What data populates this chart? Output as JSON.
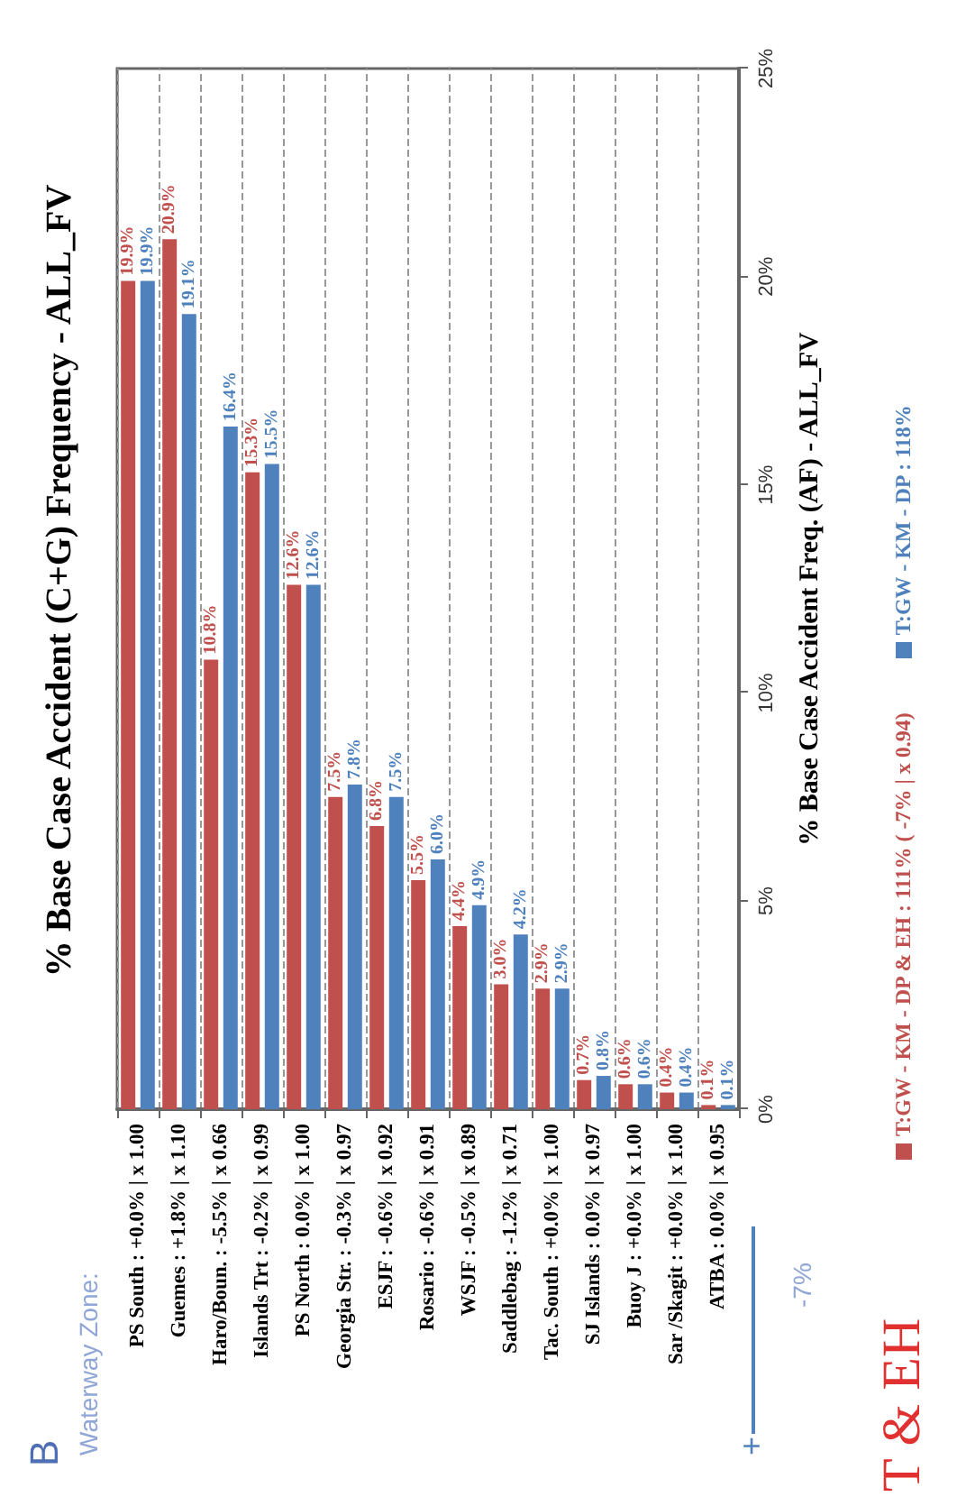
{
  "chart_data": {
    "type": "bar",
    "title": "% Base Case Accident (C+G) Frequency - ALL_FV",
    "ylabel": "% Base Case Accident Freq. (AF) - ALL_FV",
    "categories": [
      "PS South : +0.0% | x 1.00",
      "Guemes : +1.8% | x 1.10",
      "Haro/Boun. : -5.5% | x 0.66",
      "Islands Trt : -0.2% | x 0.99",
      "PS North : 0.0% | x 1.00",
      "Georgia Str. : -0.3% | x 0.97",
      "ESJF : -0.6% | x 0.92",
      "Rosario : -0.6% | x 0.91",
      "WSJF : -0.5% | x 0.89",
      "Saddlebag : -1.2% | x 0.71",
      "Tac. South : +0.0% | x 1.00",
      "SJ Islands : 0.0% | x 0.97",
      "Buoy J : +0.0% | x 1.00",
      "Sar /Skagit : +0.0% | x 1.00",
      "ATBA : 0.0% | x 0.95"
    ],
    "series": [
      {
        "name": "T:GW - KM - DP & EH : 111% ( -7% | x 0.94)",
        "color": "#c0504d",
        "values": [
          19.9,
          20.9,
          10.8,
          15.3,
          12.6,
          7.5,
          6.8,
          5.5,
          4.4,
          3.0,
          2.9,
          0.7,
          0.6,
          0.4,
          0.1
        ],
        "value_labels": [
          "19.9%",
          "20.9%",
          "10.8%",
          "15.3%",
          "12.6%",
          "7.5%",
          "6.8%",
          "5.5%",
          "4.4%",
          "3.0%",
          "2.9%",
          "0.7%",
          "0.6%",
          "0.4%",
          "0.1%"
        ]
      },
      {
        "name": "T:GW - KM - DP : 118%",
        "color": "#4f81bd",
        "values": [
          19.9,
          19.1,
          16.4,
          15.5,
          12.6,
          7.8,
          7.5,
          6.0,
          4.9,
          4.2,
          2.9,
          0.8,
          0.6,
          0.4,
          0.1
        ],
        "value_labels": [
          "19.9%",
          "19.1%",
          "16.4%",
          "15.5%",
          "12.6%",
          "7.8%",
          "7.5%",
          "6.0%",
          "4.9%",
          "4.2%",
          "2.9%",
          "0.8%",
          "0.6%",
          "0.4%",
          "0.1%"
        ]
      }
    ],
    "ylim": [
      0,
      25
    ],
    "yticks": [
      {
        "value": 0,
        "label": "0%"
      },
      {
        "value": 5,
        "label": "5%"
      },
      {
        "value": 10,
        "label": "10%"
      },
      {
        "value": 15,
        "label": "15%"
      },
      {
        "value": 20,
        "label": "20%"
      },
      {
        "value": 25,
        "label": "25%"
      }
    ],
    "grid": "x",
    "legend": "bottom",
    "annotations": [
      "B",
      "Waterway Zone:",
      "+",
      "-7%",
      "T & EH"
    ]
  }
}
